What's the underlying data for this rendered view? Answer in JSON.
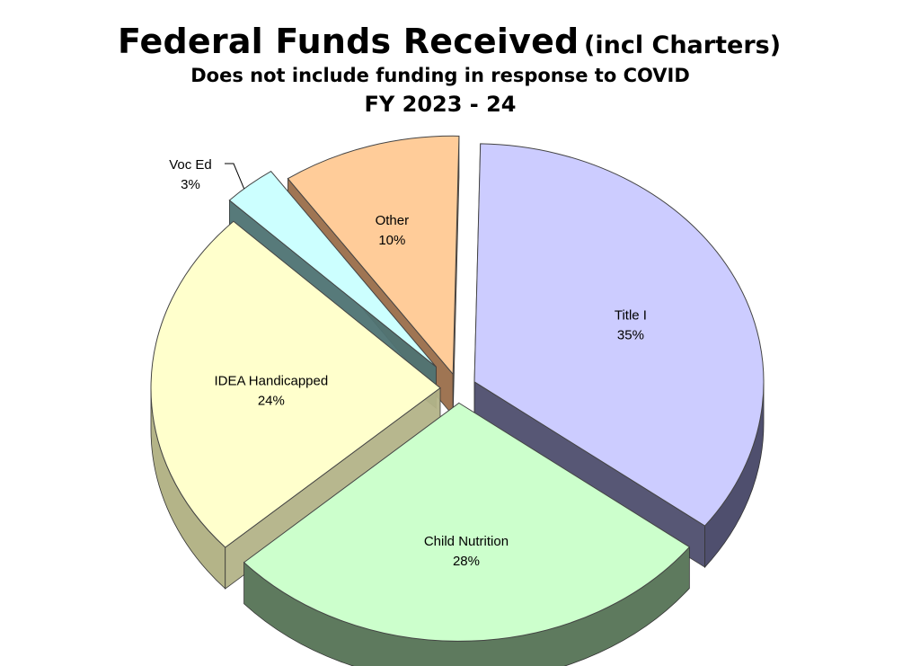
{
  "header": {
    "title_main": "Federal Funds Received",
    "title_paren": "(incl Charters)",
    "subtitle": "Does not include funding in response to COVID",
    "fiscal_year": "FY 2023 - 24"
  },
  "chart_data": {
    "type": "pie",
    "title": "Federal Funds Received (incl Charters)",
    "subtitle": "Does not include funding in response to COVID FY 2023 - 24",
    "style": "3d-exploded",
    "slices": [
      {
        "label": "Title I",
        "value": 35,
        "value_label": "35%",
        "color": "#ccccff",
        "side_color": "#4f4f6e"
      },
      {
        "label": "Child Nutrition",
        "value": 28,
        "value_label": "28%",
        "color": "#ccffcc",
        "side_color": "#5e7a5e"
      },
      {
        "label": "IDEA Handicapped",
        "value": 24,
        "value_label": "24%",
        "color": "#ffffcc",
        "side_color": "#b4b488"
      },
      {
        "label": "Voc Ed",
        "value": 3,
        "value_label": "3%",
        "color": "#ccffff",
        "side_color": "#4f7373"
      },
      {
        "label": "Other",
        "value": 10,
        "value_label": "10%",
        "color": "#ffcc99",
        "side_color": "#9a6e4a"
      }
    ]
  }
}
